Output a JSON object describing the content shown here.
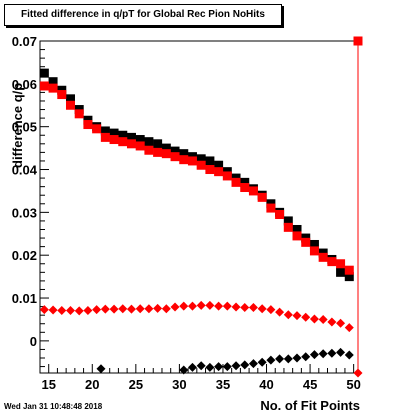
{
  "title": "Fitted difference in q/pT for Global Rec Pion NoHits",
  "timestamp": "Wed Jan 31 10:48:48 2018",
  "chart_data": {
    "type": "scatter",
    "title": "Fitted difference in q/pT for Global Rec Pion NoHits",
    "xlabel": "No. of Fit Points",
    "ylabel": "difference q/p",
    "xlim": [
      14,
      50.5
    ],
    "ylim": [
      -0.0075,
      0.07
    ],
    "xticks": [
      15,
      20,
      25,
      30,
      35,
      40,
      45,
      50
    ],
    "yticks": [
      0,
      0.01,
      0.02,
      0.03,
      0.04,
      0.05,
      0.06,
      0.07
    ],
    "ytick_labels": [
      "0",
      "0.01",
      "0.02",
      "0.03",
      "0.04",
      "0.05",
      "0.06",
      "0.07"
    ],
    "grid": false,
    "series": [
      {
        "marker": "square",
        "color": "#000000",
        "x": [
          14.5,
          15.5,
          16.5,
          17.5,
          18.5,
          19.5,
          20.5,
          21.5,
          22.5,
          23.5,
          24.5,
          25.5,
          26.5,
          27.5,
          28.5,
          29.5,
          30.5,
          31.5,
          32.5,
          33.5,
          34.5,
          35.5,
          36.5,
          37.5,
          38.5,
          39.5,
          40.5,
          41.5,
          42.5,
          43.5,
          44.5,
          45.5,
          46.5,
          47.5,
          48.5,
          49.5
        ],
        "y": [
          0.0625,
          0.0605,
          0.0585,
          0.0565,
          0.054,
          0.0515,
          0.05,
          0.049,
          0.0485,
          0.048,
          0.0475,
          0.047,
          0.0465,
          0.046,
          0.045,
          0.0443,
          0.0437,
          0.043,
          0.0425,
          0.042,
          0.041,
          0.0395,
          0.038,
          0.037,
          0.0355,
          0.034,
          0.032,
          0.03,
          0.028,
          0.026,
          0.024,
          0.0225,
          0.0205,
          0.019,
          0.016,
          0.015
        ]
      },
      {
        "marker": "square",
        "color": "#ff0000",
        "x": [
          14.5,
          15.5,
          16.5,
          17.5,
          18.5,
          19.5,
          20.5,
          21.5,
          22.5,
          23.5,
          24.5,
          25.5,
          26.5,
          27.5,
          28.5,
          29.5,
          30.5,
          31.5,
          32.5,
          33.5,
          34.5,
          35.5,
          36.5,
          37.5,
          38.5,
          39.5,
          40.5,
          41.5,
          42.5,
          43.5,
          44.5,
          45.5,
          46.5,
          47.5,
          48.5,
          49.5,
          50.5
        ],
        "y": [
          0.0595,
          0.059,
          0.0575,
          0.055,
          0.053,
          0.0505,
          0.0495,
          0.0475,
          0.047,
          0.0465,
          0.046,
          0.0455,
          0.0445,
          0.044,
          0.0437,
          0.043,
          0.0423,
          0.042,
          0.041,
          0.04,
          0.0395,
          0.0385,
          0.037,
          0.0358,
          0.035,
          0.0335,
          0.031,
          0.0295,
          0.0265,
          0.0245,
          0.023,
          0.021,
          0.0195,
          0.0185,
          0.018,
          0.0165,
          0.07
        ]
      },
      {
        "marker": "diamond",
        "color": "#ff0000",
        "x": [
          14.5,
          15.5,
          16.5,
          17.5,
          18.5,
          19.5,
          20.5,
          21.5,
          22.5,
          23.5,
          24.5,
          25.5,
          26.5,
          27.5,
          28.5,
          29.5,
          30.5,
          31.5,
          32.5,
          33.5,
          34.5,
          35.5,
          36.5,
          37.5,
          38.5,
          39.5,
          40.5,
          41.5,
          42.5,
          43.5,
          44.5,
          45.5,
          46.5,
          47.5,
          48.5,
          49.5,
          50.5
        ],
        "y": [
          0.0073,
          0.0072,
          0.0071,
          0.0071,
          0.007,
          0.0071,
          0.0073,
          0.0074,
          0.0074,
          0.0075,
          0.0074,
          0.0075,
          0.0075,
          0.0076,
          0.0075,
          0.0079,
          0.0081,
          0.0081,
          0.0083,
          0.0083,
          0.0081,
          0.0081,
          0.0079,
          0.0078,
          0.0078,
          0.0075,
          0.0073,
          0.0067,
          0.0061,
          0.0059,
          0.0055,
          0.0051,
          0.005,
          0.0044,
          0.0041,
          0.0031,
          -0.0075
        ]
      },
      {
        "marker": "diamond",
        "color": "#000000",
        "x": [
          21,
          30.5,
          31.5,
          32.5,
          33.5,
          34.5,
          35.5,
          36.5,
          37.5,
          38.5,
          39.5,
          40.5,
          41.5,
          42.5,
          43.5,
          44.5,
          45.5,
          46.5,
          47.5,
          48.5,
          49.5
        ],
        "y": [
          -0.0065,
          -0.0068,
          -0.0062,
          -0.0058,
          -0.0062,
          -0.006,
          -0.006,
          -0.0058,
          -0.0056,
          -0.0053,
          -0.005,
          -0.0045,
          -0.0042,
          -0.0042,
          -0.004,
          -0.0037,
          -0.0032,
          -0.003,
          -0.0029,
          -0.0027,
          -0.0033
        ]
      }
    ]
  }
}
